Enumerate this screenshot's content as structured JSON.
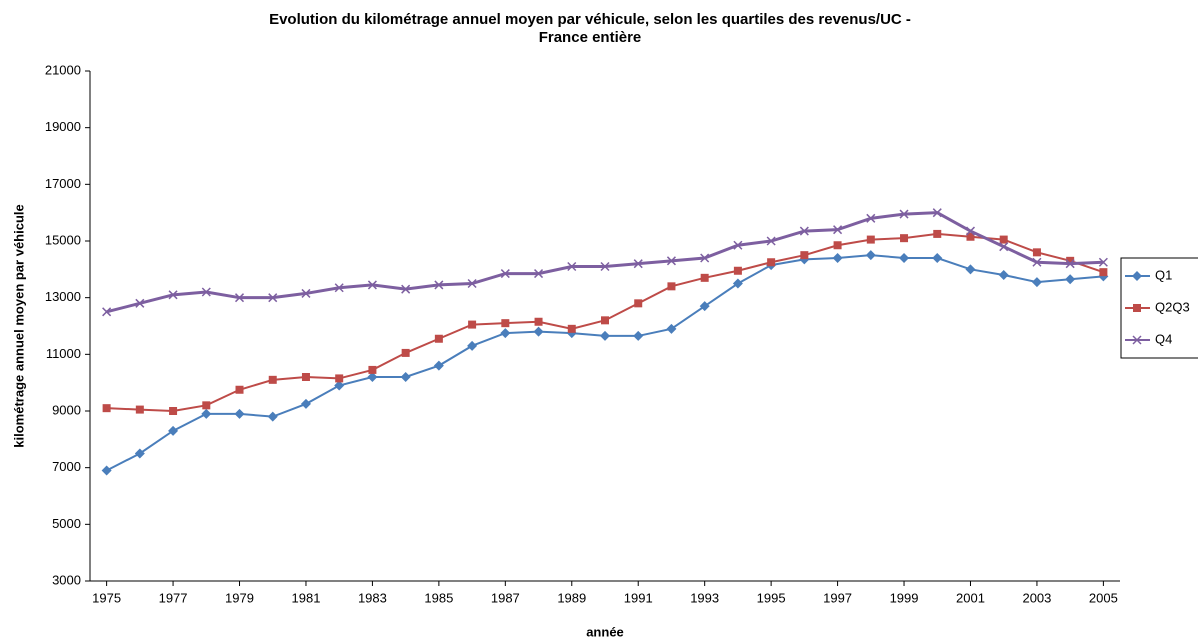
{
  "chart_data": {
    "type": "line",
    "title": [
      "Evolution du kilométrage annuel moyen par véhicule, selon les quartiles des revenus/UC -",
      "France entière"
    ],
    "x_label": "année",
    "y_label": "kilométrage annuel moyen par véhicule",
    "x": [
      1975,
      1976,
      1977,
      1978,
      1979,
      1980,
      1981,
      1982,
      1983,
      1984,
      1985,
      1986,
      1987,
      1988,
      1989,
      1990,
      1991,
      1992,
      1993,
      1994,
      1995,
      1996,
      1997,
      1998,
      1999,
      2000,
      2001,
      2002,
      2003,
      2004,
      2005
    ],
    "xlim": [
      1974.5,
      2005.5
    ],
    "xticks": [
      1975,
      1977,
      1979,
      1981,
      1983,
      1985,
      1987,
      1989,
      1991,
      1993,
      1995,
      1997,
      1999,
      2001,
      2003,
      2005
    ],
    "ylim": [
      3000,
      21000
    ],
    "yticks": [
      3000,
      5000,
      7000,
      9000,
      11000,
      13000,
      15000,
      17000,
      19000,
      21000
    ],
    "legend": "right",
    "series": [
      {
        "name": "Q1",
        "color": "#4a7ebb",
        "marker": "diamond",
        "values": [
          6900,
          7500,
          8300,
          8900,
          8900,
          8800,
          9250,
          9900,
          10200,
          10200,
          10600,
          11300,
          11750,
          11800,
          11750,
          11650,
          11650,
          11900,
          12700,
          13500,
          14150,
          14350,
          14400,
          14500,
          14400,
          14400,
          14000,
          13800,
          13550,
          13650,
          13750
        ]
      },
      {
        "name": "Q2Q3",
        "color": "#be4b48",
        "marker": "square",
        "values": [
          9100,
          9050,
          9000,
          9200,
          9750,
          10100,
          10200,
          10150,
          10450,
          11050,
          11550,
          12050,
          12100,
          12150,
          11900,
          12200,
          12800,
          13400,
          13700,
          13950,
          14250,
          14500,
          14850,
          15050,
          15100,
          15250,
          15150,
          15050,
          14600,
          14300,
          13900
        ]
      },
      {
        "name": "Q4",
        "color": "#7d5fa0",
        "marker": "x",
        "values": [
          12500,
          12800,
          13100,
          13200,
          13000,
          13000,
          13150,
          13350,
          13450,
          13300,
          13450,
          13500,
          13850,
          13850,
          14100,
          14100,
          14200,
          14300,
          14400,
          14850,
          15000,
          15350,
          15400,
          15800,
          15950,
          16000,
          15350,
          14800,
          14250,
          14200,
          14250
        ]
      }
    ]
  }
}
